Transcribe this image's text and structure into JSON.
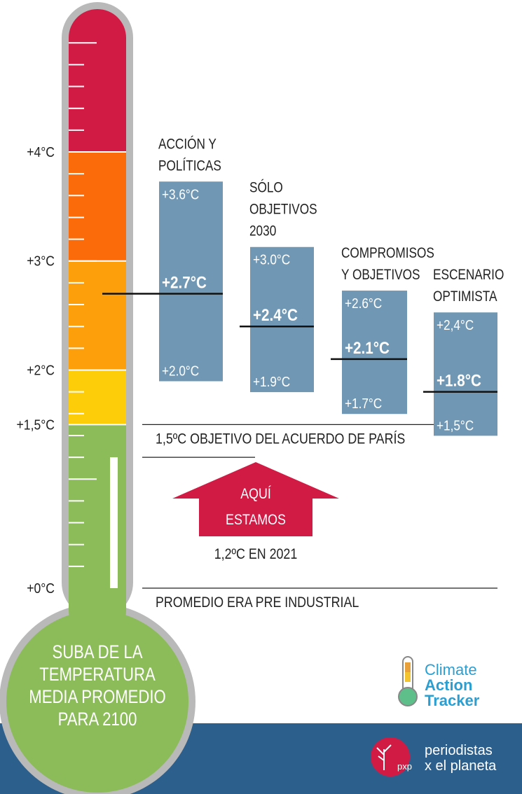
{
  "colors": {
    "red": "#d11b45",
    "orange_dark": "#fb6b0a",
    "orange": "#fd9f0b",
    "yellow": "#fdcd0a",
    "green": "#8cbb5a",
    "box_blue": "#7097b3",
    "footer_blue": "#2d5f8d",
    "outline_gray": "#b9b9b9"
  },
  "thermometer": {
    "caption_lines": [
      "SUBA DE LA",
      "TEMPERATURA",
      "MEDIA PROMEDIO",
      "PARA 2100"
    ]
  },
  "chart_data": {
    "type": "range-bar",
    "ylabel_ticks": [
      "+0°C",
      "+1,5°C",
      "+2°C",
      "+3°C",
      "+4°C"
    ],
    "tick_values": [
      0,
      1.5,
      2,
      3,
      4
    ],
    "ylim": [
      0,
      5.5
    ],
    "bands": [
      {
        "from": 0,
        "to": 1.5,
        "color": "#8cbb5a"
      },
      {
        "from": 1.5,
        "to": 2,
        "color": "#fdcd0a"
      },
      {
        "from": 2,
        "to": 3,
        "color": "#fd9f0b"
      },
      {
        "from": 3,
        "to": 4,
        "color": "#fb6b0a"
      },
      {
        "from": 4,
        "to": 5.5,
        "color": "#d11b45"
      }
    ],
    "scenarios": [
      {
        "name_lines": [
          "ACCIÓN Y",
          "POLÍTICAS"
        ],
        "high": 3.6,
        "mid": 2.7,
        "low": 2.0,
        "high_label": "+3.6°C",
        "mid_label": "+2.7°C",
        "low_label": "+2.0°C"
      },
      {
        "name_lines": [
          "SÓLO",
          "OBJETIVOS",
          "2030"
        ],
        "high": 3.0,
        "mid": 2.4,
        "low": 1.9,
        "high_label": "+3.0°C",
        "mid_label": "+2.4°C",
        "low_label": "+1.9°C"
      },
      {
        "name_lines": [
          "COMPROMISOS",
          "Y OBJETIVOS"
        ],
        "high": 2.6,
        "mid": 2.1,
        "low": 1.7,
        "high_label": "+2.6°C",
        "mid_label": "+2.1°C",
        "low_label": "+1.7°C"
      },
      {
        "name_lines": [
          "ESCENARIO",
          "OPTIMISTA"
        ],
        "high": 2.4,
        "mid": 1.8,
        "low": 1.5,
        "high_label": "+2,4°C",
        "mid_label": "+1.8°C",
        "low_label": "+1,5°C"
      }
    ],
    "current": {
      "value": 1.2,
      "arrow_lines": [
        "AQUÍ",
        "ESTAMOS"
      ],
      "label": "1,2ºC EN 2021"
    },
    "reference_lines": [
      {
        "value": 1.5,
        "label": "1,5ºC OBJETIVO DEL ACUERDO DE PARÍS"
      },
      {
        "value": 0,
        "label": "PROMEDIO ERA PRE INDUSTRIAL"
      }
    ]
  },
  "logos": {
    "cat": {
      "line1": "Climate",
      "line2": "Action",
      "line3": "Tracker"
    },
    "pxp": {
      "mark": "pxp",
      "line1": "periodistas",
      "line2": "x el planeta"
    }
  }
}
